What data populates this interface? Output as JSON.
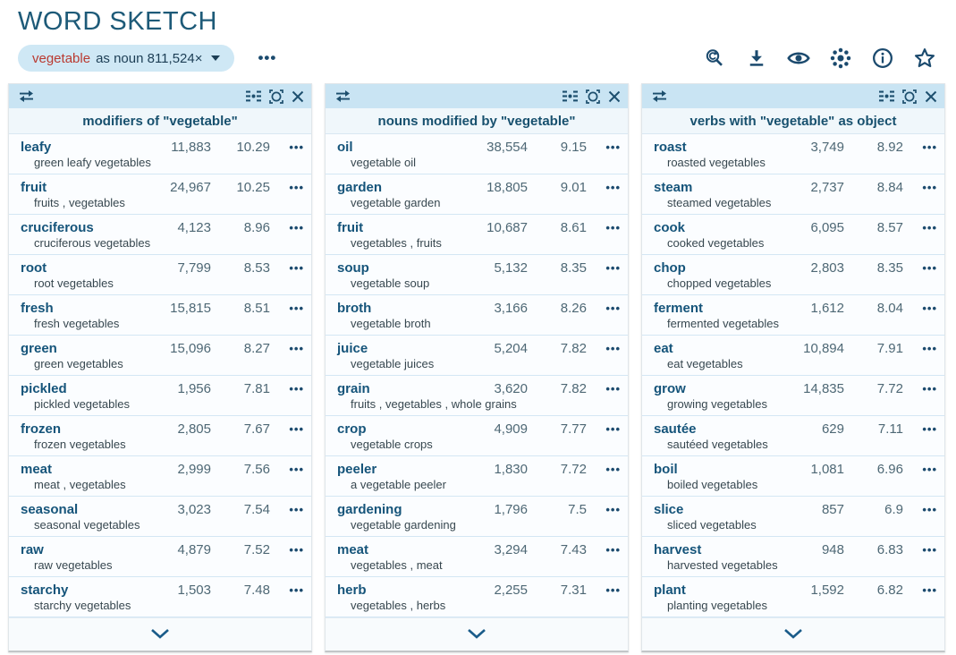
{
  "page": {
    "title": "WORD SKETCH"
  },
  "query": {
    "headword": "vegetable",
    "details": "as noun 811,524×"
  },
  "icons": {
    "more_dots": "•••",
    "toolbar": [
      "modify-search-icon",
      "download-icon",
      "eye-icon",
      "visualize-icon",
      "info-icon",
      "favorite-star-icon"
    ],
    "panel_header": [
      "swap-panel-icon",
      "view-options-icon",
      "focus-icon",
      "close-icon"
    ],
    "footer": "chevron-down-icon"
  },
  "colors": {
    "title_text": "#1d5a78",
    "pill_bg": "#cfe8f5",
    "headword_red": "#b93a31",
    "navy_text": "#15547a",
    "panel_header_bg": "#c9e4f3",
    "panel_title_bg": "#f0f7fb",
    "row_divider": "#d4e7f4",
    "number_text": "#4e6875"
  },
  "panels": [
    {
      "title": "modifiers of \"vegetable\"",
      "rows": [
        {
          "word": "leafy",
          "example": "green leafy vegetables",
          "freq": "11,883",
          "score": "10.29"
        },
        {
          "word": "fruit",
          "example": "fruits , vegetables",
          "freq": "24,967",
          "score": "10.25"
        },
        {
          "word": "cruciferous",
          "example": "cruciferous vegetables",
          "freq": "4,123",
          "score": "8.96"
        },
        {
          "word": "root",
          "example": "root vegetables",
          "freq": "7,799",
          "score": "8.53"
        },
        {
          "word": "fresh",
          "example": "fresh vegetables",
          "freq": "15,815",
          "score": "8.51"
        },
        {
          "word": "green",
          "example": "green vegetables",
          "freq": "15,096",
          "score": "8.27"
        },
        {
          "word": "pickled",
          "example": "pickled vegetables",
          "freq": "1,956",
          "score": "7.81"
        },
        {
          "word": "frozen",
          "example": "frozen vegetables",
          "freq": "2,805",
          "score": "7.67"
        },
        {
          "word": "meat",
          "example": "meat , vegetables",
          "freq": "2,999",
          "score": "7.56"
        },
        {
          "word": "seasonal",
          "example": "seasonal vegetables",
          "freq": "3,023",
          "score": "7.54"
        },
        {
          "word": "raw",
          "example": "raw vegetables",
          "freq": "4,879",
          "score": "7.52"
        },
        {
          "word": "starchy",
          "example": "starchy vegetables",
          "freq": "1,503",
          "score": "7.48"
        }
      ]
    },
    {
      "title": "nouns modified by \"vegetable\"",
      "rows": [
        {
          "word": "oil",
          "example": "vegetable oil",
          "freq": "38,554",
          "score": "9.15"
        },
        {
          "word": "garden",
          "example": "vegetable garden",
          "freq": "18,805",
          "score": "9.01"
        },
        {
          "word": "fruit",
          "example": "vegetables , fruits",
          "freq": "10,687",
          "score": "8.61"
        },
        {
          "word": "soup",
          "example": "vegetable soup",
          "freq": "5,132",
          "score": "8.35"
        },
        {
          "word": "broth",
          "example": "vegetable broth",
          "freq": "3,166",
          "score": "8.26"
        },
        {
          "word": "juice",
          "example": "vegetable juices",
          "freq": "5,204",
          "score": "7.82"
        },
        {
          "word": "grain",
          "example": "fruits , vegetables , whole grains",
          "freq": "3,620",
          "score": "7.82"
        },
        {
          "word": "crop",
          "example": "vegetable crops",
          "freq": "4,909",
          "score": "7.77"
        },
        {
          "word": "peeler",
          "example": "a vegetable peeler",
          "freq": "1,830",
          "score": "7.72"
        },
        {
          "word": "gardening",
          "example": "vegetable gardening",
          "freq": "1,796",
          "score": "7.5"
        },
        {
          "word": "meat",
          "example": "vegetables , meat",
          "freq": "3,294",
          "score": "7.43"
        },
        {
          "word": "herb",
          "example": "vegetables , herbs",
          "freq": "2,255",
          "score": "7.31"
        }
      ]
    },
    {
      "title": "verbs with \"vegetable\" as object",
      "rows": [
        {
          "word": "roast",
          "example": "roasted vegetables",
          "freq": "3,749",
          "score": "8.92"
        },
        {
          "word": "steam",
          "example": "steamed vegetables",
          "freq": "2,737",
          "score": "8.84"
        },
        {
          "word": "cook",
          "example": "cooked vegetables",
          "freq": "6,095",
          "score": "8.57"
        },
        {
          "word": "chop",
          "example": "chopped vegetables",
          "freq": "2,803",
          "score": "8.35"
        },
        {
          "word": "ferment",
          "example": "fermented vegetables",
          "freq": "1,612",
          "score": "8.04"
        },
        {
          "word": "eat",
          "example": "eat vegetables",
          "freq": "10,894",
          "score": "7.91"
        },
        {
          "word": "grow",
          "example": "growing vegetables",
          "freq": "14,835",
          "score": "7.72"
        },
        {
          "word": "sautée",
          "example": "sautéed vegetables",
          "freq": "629",
          "score": "7.11"
        },
        {
          "word": "boil",
          "example": "boiled vegetables",
          "freq": "1,081",
          "score": "6.96"
        },
        {
          "word": "slice",
          "example": "sliced vegetables",
          "freq": "857",
          "score": "6.9"
        },
        {
          "word": "harvest",
          "example": "harvested vegetables",
          "freq": "948",
          "score": "6.83"
        },
        {
          "word": "plant",
          "example": "planting vegetables",
          "freq": "1,592",
          "score": "6.82"
        }
      ]
    }
  ]
}
